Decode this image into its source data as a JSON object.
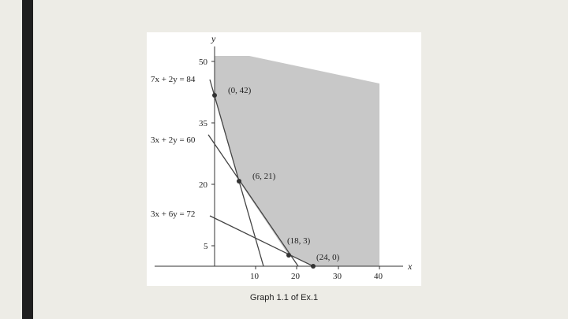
{
  "slide": {
    "caption": "Graph 1.1 of Ex.1",
    "colors": {
      "background": "#edece6",
      "accent_bar": "#1f1f1f",
      "feasible_region": "#c8c8c8"
    }
  },
  "graph": {
    "x_axis_label": "x",
    "y_axis_label": "y",
    "x_ticks": [
      "10",
      "20",
      "30",
      "40"
    ],
    "y_ticks": [
      "5",
      "20",
      "35",
      "50"
    ],
    "lines": [
      {
        "label": "7x + 2y = 84"
      },
      {
        "label": "3x + 2y = 60"
      },
      {
        "label": "3x + 6y = 72"
      }
    ],
    "points": [
      {
        "label": "(0, 42)"
      },
      {
        "label": "(6, 21)"
      },
      {
        "label": "(18, 3)"
      },
      {
        "label": "(24, 0)"
      }
    ]
  }
}
